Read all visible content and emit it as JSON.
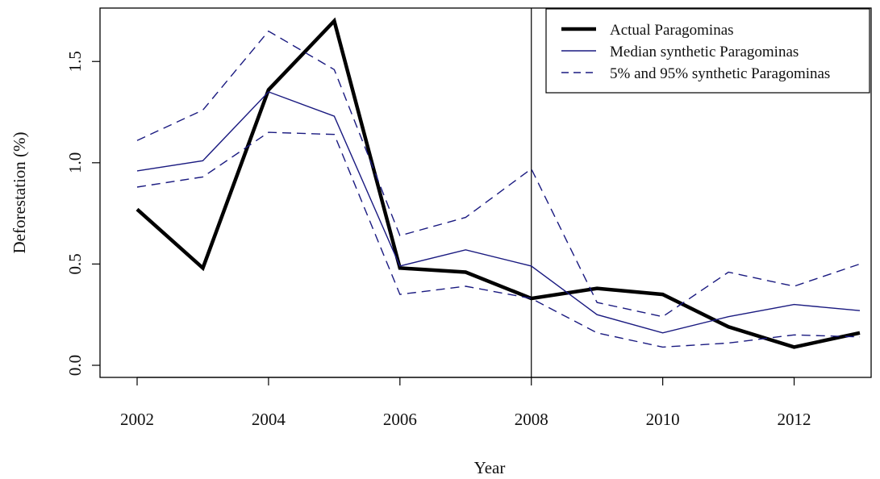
{
  "chart_data": {
    "type": "line",
    "title": "",
    "xlabel": "Year",
    "ylabel": "Deforestation (%)",
    "x": [
      2002,
      2003,
      2004,
      2005,
      2006,
      2007,
      2008,
      2009,
      2010,
      2011,
      2012,
      2013
    ],
    "xlim": [
      2002,
      2013
    ],
    "ylim": [
      0,
      1.7
    ],
    "x_ticks": [
      "2002",
      "2004",
      "2006",
      "2008",
      "2010",
      "2012"
    ],
    "y_ticks": [
      "0.0",
      "0.5",
      "1.0",
      "1.5"
    ],
    "grid": false,
    "legend_position": "top-right",
    "vertical_reference_line_x": 2008,
    "series": [
      {
        "name": "Actual Paragominas",
        "color": "#000000",
        "style": "solid-thick",
        "values": [
          0.77,
          0.48,
          1.36,
          1.7,
          0.48,
          0.46,
          0.33,
          0.38,
          0.35,
          0.19,
          0.09,
          0.16
        ]
      },
      {
        "name": "Median synthetic Paragominas",
        "color": "#1a1a80",
        "style": "solid-thin",
        "values": [
          0.96,
          1.01,
          1.35,
          1.23,
          0.49,
          0.57,
          0.49,
          0.25,
          0.16,
          0.24,
          0.3,
          0.27
        ]
      },
      {
        "name": "5% and 95% synthetic Paragominas",
        "color": "#1a1a80",
        "style": "dashed",
        "values": [
          1.11,
          1.26,
          1.65,
          1.46,
          0.64,
          0.73,
          0.97,
          0.31,
          0.24,
          0.46,
          0.39,
          0.5
        ]
      },
      {
        "name": "",
        "color": "#1a1a80",
        "style": "dashed",
        "values": [
          0.88,
          0.93,
          1.15,
          1.14,
          0.35,
          0.39,
          0.33,
          0.16,
          0.09,
          0.11,
          0.15,
          0.14
        ]
      }
    ]
  }
}
